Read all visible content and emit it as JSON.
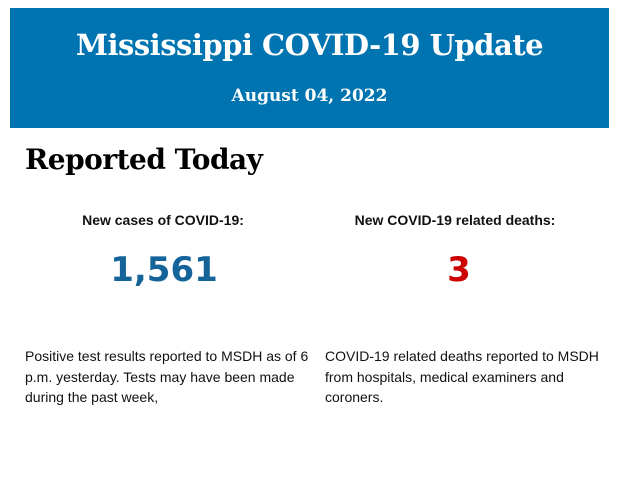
{
  "header": {
    "title": "Mississippi COVID-19 Update",
    "date": "August 04, 2022"
  },
  "section_title": "Reported Today",
  "cases": {
    "label": "New cases of COVID-19:",
    "value": "1,561",
    "description": "Positive test results reported to MSDH as of 6 p.m. yesterday. Tests may have been made during the past week,"
  },
  "deaths": {
    "label": "New COVID-19 related deaths:",
    "value": "3",
    "description": "COVID-19 related deaths reported to MSDH from hospitals, medical examiners and coroners."
  },
  "colors": {
    "brand": "#0073b1",
    "cases": "#14649a",
    "deaths": "#cc0000"
  }
}
